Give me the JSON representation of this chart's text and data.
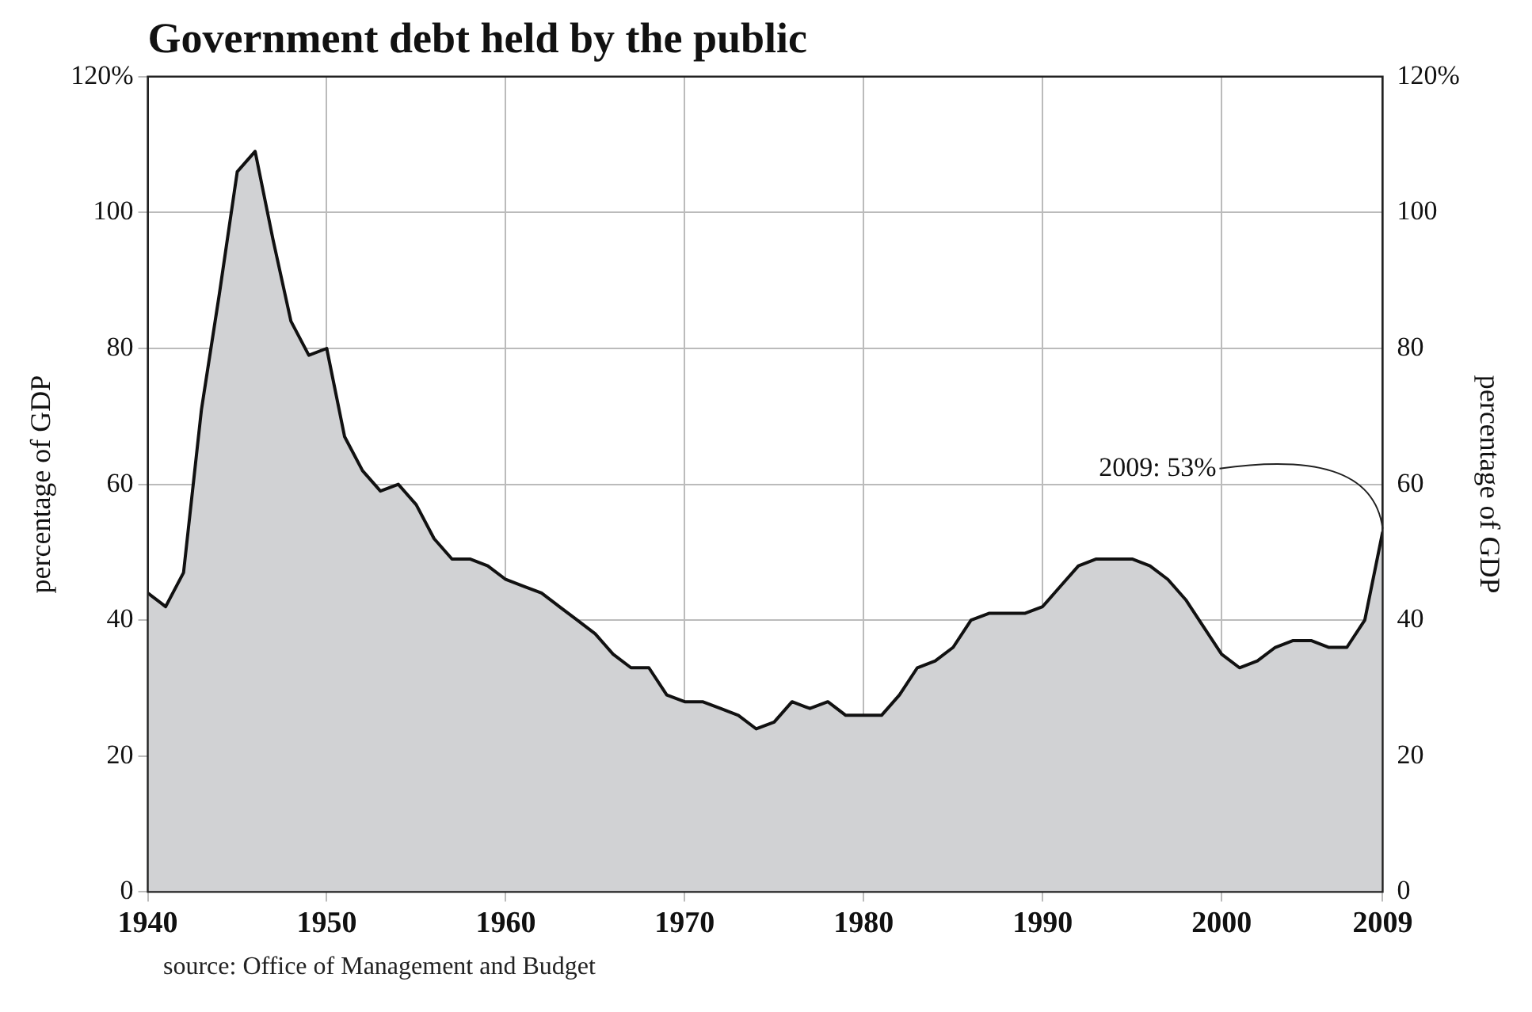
{
  "chart_data": {
    "type": "area",
    "title": "Government debt held by the public",
    "ylabel": "percentage of GDP",
    "y2label": "percentage of GDP",
    "x": [
      1940,
      1941,
      1942,
      1943,
      1944,
      1945,
      1946,
      1947,
      1948,
      1949,
      1950,
      1951,
      1952,
      1953,
      1954,
      1955,
      1956,
      1957,
      1958,
      1959,
      1960,
      1961,
      1962,
      1963,
      1964,
      1965,
      1966,
      1967,
      1968,
      1969,
      1970,
      1971,
      1972,
      1973,
      1974,
      1975,
      1976,
      1977,
      1978,
      1979,
      1980,
      1981,
      1982,
      1983,
      1984,
      1985,
      1986,
      1987,
      1988,
      1989,
      1990,
      1991,
      1992,
      1993,
      1994,
      1995,
      1996,
      1997,
      1998,
      1999,
      2000,
      2001,
      2002,
      2003,
      2004,
      2005,
      2006,
      2007,
      2008,
      2009
    ],
    "series": [
      {
        "color": "#d1d2d4",
        "values": [
          44,
          42,
          47,
          71,
          88,
          106,
          109,
          96,
          84,
          79,
          80,
          67,
          62,
          59,
          60,
          57,
          52,
          49,
          49,
          48,
          46,
          45,
          44,
          42,
          40,
          38,
          35,
          33,
          33,
          29,
          28,
          28,
          27,
          26,
          24,
          25,
          28,
          27,
          28,
          26,
          26,
          26,
          29,
          33,
          34,
          36,
          40,
          41,
          41,
          41,
          42,
          45,
          48,
          49,
          49,
          49,
          48,
          46,
          43,
          39,
          35,
          33,
          34,
          36,
          37,
          37,
          36,
          36,
          40,
          53
        ]
      }
    ],
    "xlim": [
      1940,
      2009
    ],
    "xticks": [
      1940,
      1950,
      1960,
      1970,
      1980,
      1990,
      2000,
      2009
    ],
    "ylim": [
      0,
      120
    ],
    "yticks": [
      0,
      20,
      40,
      60,
      80,
      100,
      {
        "value": 120,
        "label": "120%"
      }
    ],
    "y2lim": [
      0,
      120
    ],
    "y2ticks": [
      0,
      20,
      40,
      60,
      80,
      100,
      {
        "value": 120,
        "label": "120%"
      }
    ],
    "grid": true,
    "legend": false,
    "annotations": [
      {
        "text": "2009: 53%",
        "x": 2009,
        "y": 53
      },
      "source: Office of Management and Budget"
    ]
  }
}
